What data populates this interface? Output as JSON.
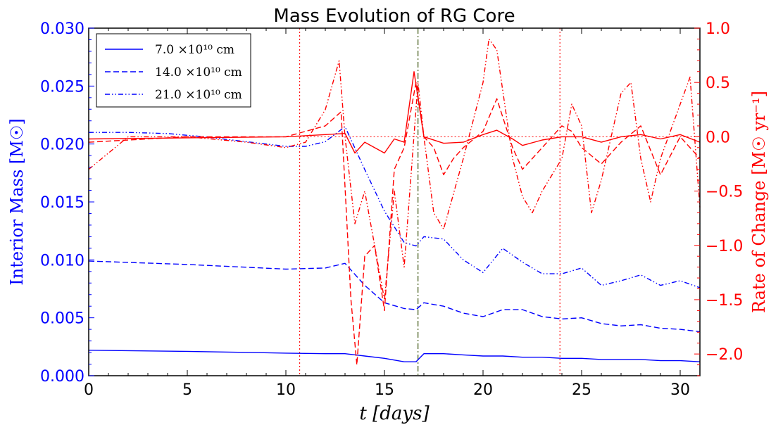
{
  "chart_data": {
    "type": "line",
    "title": "Mass Evolution of RG Core",
    "xlabel": "t  [days]",
    "ylabel_left": "Interior Mass  [M☉]",
    "ylabel_right": "Rate of Change  [M☉ yr⁻¹]",
    "xlim": [
      0,
      31
    ],
    "ylim_left": [
      0,
      0.03
    ],
    "ylim_right": [
      -2.2,
      1.0
    ],
    "x_ticks": [
      "0",
      "5",
      "10",
      "15",
      "20",
      "25",
      "30"
    ],
    "y_left_ticks": [
      "0.000",
      "0.005",
      "0.010",
      "0.015",
      "0.020",
      "0.025",
      "0.030"
    ],
    "y_right_ticks": [
      "−2.0",
      "−1.5",
      "−1.0",
      "−0.5",
      "0.0",
      "0.5",
      "1.0"
    ],
    "legend_position": "top-left",
    "legend": [
      {
        "label": "7.0 ×10¹⁰  cm",
        "dash": "solid"
      },
      {
        "label": "14.0 ×10¹⁰  cm",
        "dash": "dashed"
      },
      {
        "label": "21.0 ×10¹⁰  cm",
        "dash": "dashdotdot"
      }
    ],
    "colors": {
      "mass": "#0000ff",
      "rate": "#ff0000",
      "marker": "#556b2f"
    },
    "vertical_markers": [
      {
        "x": 10.7,
        "style": "dotted",
        "color": "#ff0000"
      },
      {
        "x": 16.7,
        "style": "dashdot",
        "color": "#556b2f"
      },
      {
        "x": 23.9,
        "style": "dotted",
        "color": "#ff0000"
      }
    ],
    "horizontal_reference": {
      "y_right": 0.0,
      "style": "dotted",
      "color": "#ff0000",
      "x_from": 10.7,
      "x_to": 31
    },
    "mass_series": [
      {
        "name": "7.0 ×10¹⁰  cm",
        "axis": "left",
        "dash": "solid",
        "x": [
          0,
          5,
          10,
          12,
          13,
          14,
          15,
          16,
          16.6,
          17,
          18,
          19,
          20,
          21,
          22,
          23,
          24,
          25,
          26,
          27,
          28,
          29,
          30,
          31
        ],
        "y": [
          0.0022,
          0.0021,
          0.00195,
          0.0019,
          0.0019,
          0.0017,
          0.0015,
          0.0012,
          0.0012,
          0.0019,
          0.0019,
          0.0018,
          0.0017,
          0.0017,
          0.0016,
          0.0016,
          0.0015,
          0.0015,
          0.0014,
          0.0014,
          0.0014,
          0.0013,
          0.0013,
          0.0012
        ]
      },
      {
        "name": "14.0 ×10¹⁰  cm",
        "axis": "left",
        "dash": "dashed",
        "x": [
          0,
          5,
          10,
          12,
          13,
          14,
          15,
          16,
          16.6,
          17,
          18,
          19,
          20,
          21,
          22,
          23,
          24,
          25,
          26,
          27,
          28,
          29,
          30,
          31
        ],
        "y": [
          0.0099,
          0.0096,
          0.0092,
          0.0093,
          0.0097,
          0.0078,
          0.0063,
          0.0058,
          0.0057,
          0.0063,
          0.006,
          0.0054,
          0.0051,
          0.0057,
          0.0057,
          0.0051,
          0.0049,
          0.005,
          0.0045,
          0.0043,
          0.0044,
          0.0041,
          0.004,
          0.0038
        ]
      },
      {
        "name": "21.0 ×10¹⁰  cm",
        "axis": "left",
        "dash": "dashdotdot",
        "x": [
          0,
          2,
          4,
          6,
          8,
          10,
          11,
          12,
          13,
          14,
          15,
          16,
          16.6,
          17,
          18,
          19,
          20,
          21,
          22,
          23,
          24,
          25,
          26,
          27,
          28,
          29,
          30,
          31
        ],
        "y": [
          0.021,
          0.021,
          0.0209,
          0.0206,
          0.0202,
          0.0198,
          0.0198,
          0.0202,
          0.0215,
          0.0178,
          0.0142,
          0.0115,
          0.0112,
          0.012,
          0.0118,
          0.01,
          0.0089,
          0.011,
          0.0098,
          0.0088,
          0.0088,
          0.0093,
          0.0078,
          0.0082,
          0.0087,
          0.0078,
          0.0082,
          0.0076
        ]
      }
    ],
    "rate_series": [
      {
        "name": "7.0 ×10¹⁰  cm",
        "axis": "right",
        "dash": "solid",
        "x": [
          0,
          5,
          10,
          12,
          13,
          13.5,
          14,
          15,
          15.5,
          16,
          16.5,
          17,
          18,
          19,
          20,
          20.7,
          21.5,
          22,
          23,
          24,
          25,
          26,
          27,
          28,
          29,
          30,
          31
        ],
        "y": [
          -0.02,
          -0.01,
          0.0,
          0.02,
          0.03,
          -0.15,
          -0.05,
          -0.15,
          -0.02,
          -0.05,
          0.6,
          0.0,
          -0.06,
          -0.05,
          0.02,
          0.06,
          -0.02,
          -0.08,
          -0.03,
          0.0,
          0.0,
          -0.05,
          0.0,
          0.02,
          -0.02,
          0.02,
          -0.05
        ]
      },
      {
        "name": "14.0 ×10¹⁰  cm",
        "axis": "right",
        "dash": "dashed",
        "x": [
          0,
          5,
          10,
          12,
          12.8,
          13.3,
          13.6,
          14,
          14.5,
          15,
          15.5,
          16,
          16.6,
          17,
          17.5,
          18,
          18.5,
          19,
          20,
          20.7,
          21.5,
          22,
          23,
          24,
          24.5,
          25,
          26,
          27,
          28,
          29,
          30,
          31
        ],
        "y": [
          -0.05,
          0.0,
          0.0,
          0.1,
          0.23,
          -1.5,
          -2.1,
          -1.1,
          -1.0,
          -1.6,
          -0.3,
          -0.1,
          0.5,
          0.0,
          -0.1,
          -0.35,
          -0.2,
          -0.1,
          0.05,
          0.35,
          -0.1,
          -0.3,
          -0.1,
          0.1,
          0.05,
          -0.1,
          -0.25,
          -0.05,
          0.1,
          -0.35,
          0.0,
          -0.2
        ]
      },
      {
        "name": "21.0 ×10¹⁰  cm",
        "axis": "right",
        "dash": "dashdotdot",
        "x": [
          0,
          2,
          5,
          8,
          10,
          11,
          12,
          12.7,
          13,
          13.5,
          14,
          15,
          15.5,
          16,
          16.7,
          17,
          17.5,
          18,
          19,
          20,
          20.3,
          20.7,
          21.5,
          22,
          22.5,
          23,
          24,
          24.5,
          25,
          25.5,
          26,
          27,
          27.5,
          28,
          28.5,
          29,
          30,
          30.5,
          31
        ],
        "y": [
          -0.3,
          0.0,
          0.0,
          -0.05,
          -0.1,
          -0.05,
          0.25,
          0.7,
          0.0,
          -0.8,
          -0.5,
          -1.5,
          -0.5,
          -1.2,
          0.5,
          0.0,
          -0.7,
          -0.85,
          -0.2,
          0.5,
          0.9,
          0.8,
          -0.2,
          -0.55,
          -0.7,
          -0.5,
          -0.2,
          0.3,
          0.1,
          -0.7,
          -0.4,
          0.4,
          0.5,
          -0.2,
          -0.6,
          -0.2,
          0.3,
          0.55,
          -0.65
        ]
      }
    ]
  }
}
